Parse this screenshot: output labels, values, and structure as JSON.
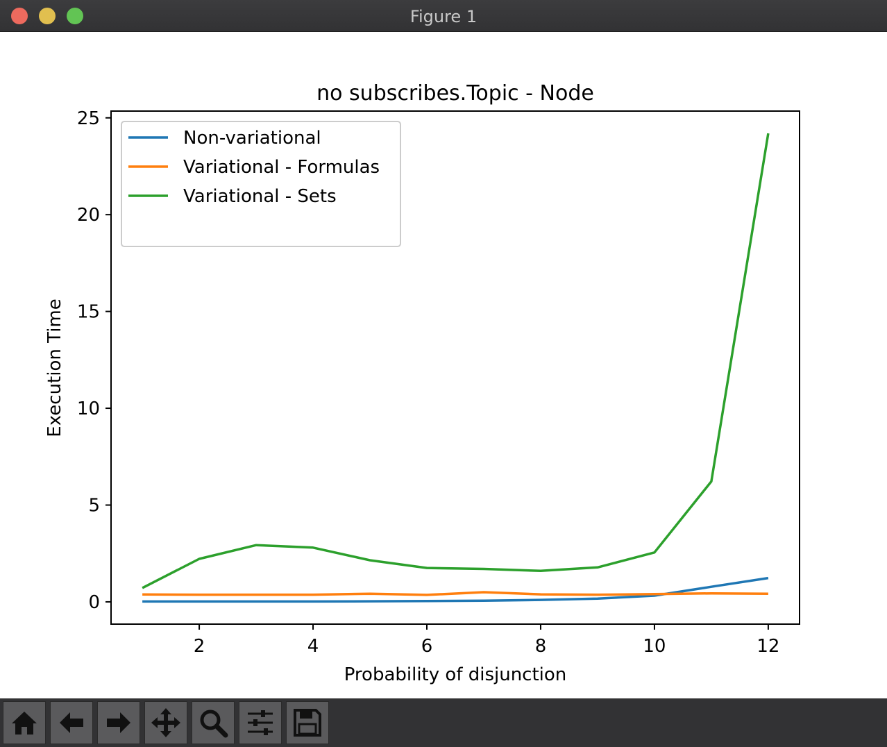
{
  "window": {
    "title": "Figure 1"
  },
  "toolbar": {
    "buttons": [
      {
        "icon": "home-icon"
      },
      {
        "icon": "back-arrow-icon"
      },
      {
        "icon": "forward-arrow-icon"
      },
      {
        "icon": "pan-icon"
      },
      {
        "icon": "zoom-icon"
      },
      {
        "icon": "configure-subplots-icon"
      },
      {
        "icon": "save-icon"
      }
    ]
  },
  "chart_data": {
    "type": "line",
    "title": "no subscribes.Topic - Node",
    "xlabel": "Probability of disjunction",
    "ylabel": "Execution Time",
    "xlim": [
      0.45,
      12.55
    ],
    "ylim": [
      -1.15,
      25.35
    ],
    "xticks": [
      2,
      4,
      6,
      8,
      10,
      12
    ],
    "yticks": [
      0,
      5,
      10,
      15,
      20,
      25
    ],
    "grid": false,
    "legend_position": "upper left",
    "x": [
      1,
      2,
      3,
      4,
      5,
      6,
      7,
      8,
      9,
      10,
      11,
      12
    ],
    "series": [
      {
        "name": "Non-variational",
        "color": "#1f77b4",
        "values": [
          0.02,
          0.02,
          0.02,
          0.02,
          0.03,
          0.04,
          0.06,
          0.1,
          0.17,
          0.32,
          0.78,
          1.23
        ]
      },
      {
        "name": "Variational - Formulas",
        "color": "#ff7f0e",
        "values": [
          0.38,
          0.37,
          0.37,
          0.37,
          0.42,
          0.36,
          0.5,
          0.39,
          0.37,
          0.4,
          0.44,
          0.42
        ]
      },
      {
        "name": "Variational - Sets",
        "color": "#2ca02c",
        "values": [
          0.72,
          2.22,
          2.93,
          2.8,
          2.15,
          1.75,
          1.7,
          1.6,
          1.78,
          2.55,
          6.22,
          24.2
        ]
      }
    ]
  }
}
